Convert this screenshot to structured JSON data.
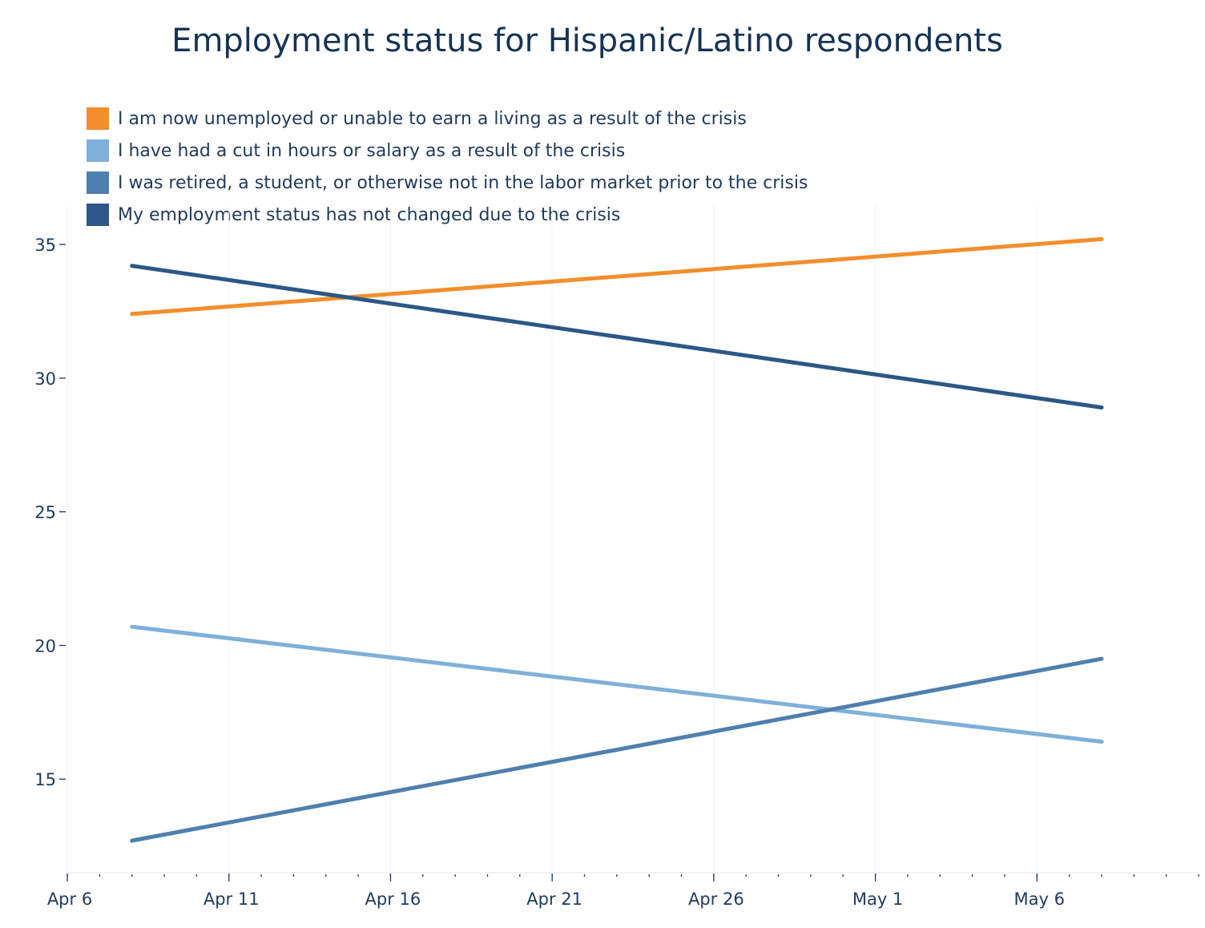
{
  "chart_data": {
    "type": "line",
    "title": "Employment status for Hispanic/Latino respondents",
    "xlabel": "",
    "ylabel": "",
    "x_range": [
      "2020-04-06",
      "2020-05-11"
    ],
    "ylim": [
      11.5,
      36.5
    ],
    "grid": "vertical",
    "legend_position": "top-left",
    "x_ticks": [
      {
        "date": "2020-04-06",
        "label": "Apr 6"
      },
      {
        "date": "2020-04-11",
        "label": "Apr 11"
      },
      {
        "date": "2020-04-16",
        "label": "Apr 16"
      },
      {
        "date": "2020-04-21",
        "label": "Apr 21"
      },
      {
        "date": "2020-04-26",
        "label": "Apr 26"
      },
      {
        "date": "2020-05-01",
        "label": "May 1"
      },
      {
        "date": "2020-05-06",
        "label": "May 6"
      }
    ],
    "y_ticks": [
      15,
      20,
      25,
      30,
      35
    ],
    "x": [
      "2020-04-08",
      "2020-05-08"
    ],
    "series": [
      {
        "name": "I am now unemployed or unable to earn a living as a result of the crisis",
        "color": "#f28e2b",
        "values": [
          32.4,
          35.2
        ]
      },
      {
        "name": "I have had a cut in hours or salary as a result of the crisis",
        "color": "#7fb0d8",
        "values": [
          20.7,
          16.4
        ]
      },
      {
        "name": "I was retired, a student, or otherwise not in the labor market prior to the crisis",
        "color": "#4f7fad",
        "values": [
          12.7,
          19.5
        ]
      },
      {
        "name": "My employment status has not changed due to the crisis",
        "color": "#2c5786",
        "values": [
          34.2,
          28.9
        ]
      }
    ]
  }
}
